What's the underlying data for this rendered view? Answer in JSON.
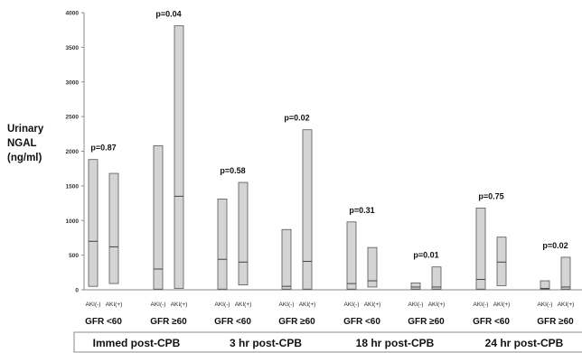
{
  "chart_data": {
    "type": "floating-bar",
    "ylabel_lines": [
      "Urinary",
      "NGAL",
      "(ng/ml)"
    ],
    "ylim": [
      0,
      4000
    ],
    "yticks": [
      0,
      500,
      1000,
      1500,
      2000,
      2500,
      3000,
      3500,
      4000
    ],
    "grid": false,
    "category_labels": [
      "AKI(-)",
      "AKI(+)"
    ],
    "time_points": [
      "Immed post-CPB",
      "3 hr post-CPB",
      "18 hr post-CPB",
      "24 hr post-CPB"
    ],
    "groups": [
      {
        "time": "Immed post-CPB",
        "gfr_label": "GFR <60",
        "p_value": "p=0.87",
        "bars": [
          {
            "label": "AKI(-)",
            "min": 50,
            "median": 700,
            "max": 1880
          },
          {
            "label": "AKI(+)",
            "min": 90,
            "median": 620,
            "max": 1680
          }
        ]
      },
      {
        "time": "Immed post-CPB",
        "gfr_label": "GFR ≥60",
        "p_value": "p=0.04",
        "bars": [
          {
            "label": "AKI(-)",
            "min": 10,
            "median": 300,
            "max": 2080
          },
          {
            "label": "AKI(+)",
            "min": 20,
            "median": 1350,
            "max": 3810
          }
        ]
      },
      {
        "time": "3 hr post-CPB",
        "gfr_label": "GFR <60",
        "p_value": "p=0.58",
        "bars": [
          {
            "label": "AKI(-)",
            "min": 10,
            "median": 440,
            "max": 1310
          },
          {
            "label": "AKI(+)",
            "min": 70,
            "median": 400,
            "max": 1550
          }
        ]
      },
      {
        "time": "3 hr post-CPB",
        "gfr_label": "GFR ≥60",
        "p_value": "p=0.02",
        "bars": [
          {
            "label": "AKI(-)",
            "min": 10,
            "median": 50,
            "max": 870
          },
          {
            "label": "AKI(+)",
            "min": 10,
            "median": 410,
            "max": 2310
          }
        ]
      },
      {
        "time": "18 hr post-CPB",
        "gfr_label": "GFR <60",
        "p_value": "p=0.31",
        "bars": [
          {
            "label": "AKI(-)",
            "min": 10,
            "median": 90,
            "max": 980
          },
          {
            "label": "AKI(+)",
            "min": 40,
            "median": 130,
            "max": 610
          }
        ]
      },
      {
        "time": "18 hr post-CPB",
        "gfr_label": "GFR ≥60",
        "p_value": "p=0.01",
        "bars": [
          {
            "label": "AKI(-)",
            "min": 10,
            "median": 40,
            "max": 100
          },
          {
            "label": "AKI(+)",
            "min": 10,
            "median": 40,
            "max": 330
          }
        ]
      },
      {
        "time": "24 hr post-CPB",
        "gfr_label": "GFR <60",
        "p_value": "p=0.75",
        "bars": [
          {
            "label": "AKI(-)",
            "min": 10,
            "median": 150,
            "max": 1180
          },
          {
            "label": "AKI(+)",
            "min": 60,
            "median": 400,
            "max": 760
          }
        ]
      },
      {
        "time": "24 hr post-CPB",
        "gfr_label": "GFR ≥60",
        "p_value": "p=0.02",
        "bars": [
          {
            "label": "AKI(-)",
            "min": 10,
            "median": 20,
            "max": 130
          },
          {
            "label": "AKI(+)",
            "min": 10,
            "median": 40,
            "max": 470
          }
        ]
      }
    ]
  }
}
